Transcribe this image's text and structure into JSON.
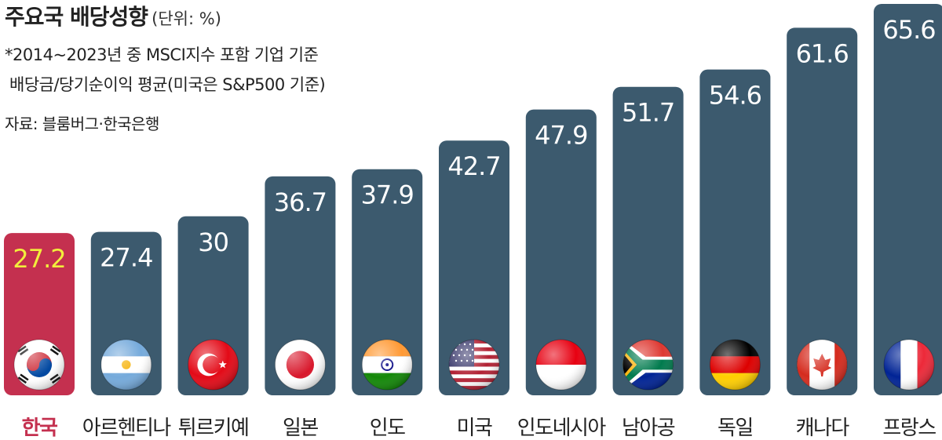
{
  "title": "주요국 배당성향",
  "unit": "(단위: %)",
  "notes": [
    "*2014~2023년 중 MSCI지수 포함 기업 기준",
    "배당금/당기순이익 평균(미국은 S&P500 기준)"
  ],
  "source": "자료: 블룸버그·한국은행",
  "colors": {
    "bar": "#3c5a6e",
    "highlight_bar": "#c4304f",
    "value_label": "#ffffff",
    "highlight_value_label": "#f2ee3c",
    "category_label": "#222222",
    "highlight_category_label": "#c4304f"
  },
  "chart_data": {
    "type": "bar",
    "title": "주요국 배당성향",
    "xlabel": "",
    "ylabel": "",
    "ylim": [
      0,
      65.6
    ],
    "grid": false,
    "legend": "none",
    "highlight_category": "한국",
    "categories": [
      "한국",
      "아르헨티나",
      "튀르키예",
      "일본",
      "인도",
      "미국",
      "인도네시아",
      "남아공",
      "독일",
      "캐나다",
      "프랑스"
    ],
    "values": [
      27.2,
      27.4,
      30,
      36.7,
      37.9,
      42.7,
      47.9,
      51.7,
      54.6,
      61.6,
      65.6
    ],
    "value_labels": [
      "27.2",
      "27.4",
      "30",
      "36.7",
      "37.9",
      "42.7",
      "47.9",
      "51.7",
      "54.6",
      "61.6",
      "65.6"
    ],
    "flag_icons": [
      "korea-flag-icon",
      "argentina-flag-icon",
      "turkey-flag-icon",
      "japan-flag-icon",
      "india-flag-icon",
      "usa-flag-icon",
      "indonesia-flag-icon",
      "south-africa-flag-icon",
      "germany-flag-icon",
      "canada-flag-icon",
      "france-flag-icon"
    ]
  }
}
